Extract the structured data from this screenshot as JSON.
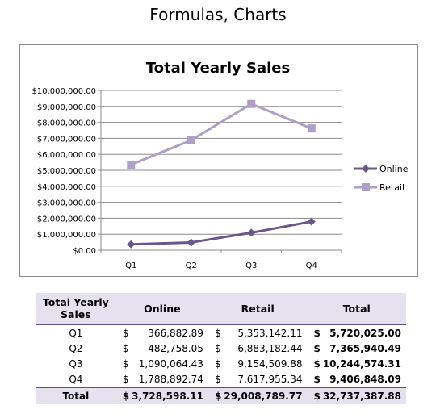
{
  "page": {
    "title": "Formulas, Charts"
  },
  "colors": {
    "online": "#6a568a",
    "retail": "#ad9fc5",
    "header_bg": "#e5e1ee",
    "rule": "#5e4d86"
  },
  "chart_data": {
    "type": "line",
    "title": "Total Yearly Sales",
    "categories": [
      "Q1",
      "Q2",
      "Q3",
      "Q4"
    ],
    "series": [
      {
        "name": "Online",
        "values": [
          366882.89,
          482758.05,
          1090064.43,
          1788892.74
        ],
        "marker": "diamond",
        "color": "#6a568a"
      },
      {
        "name": "Retail",
        "values": [
          5353142.11,
          6883182.44,
          9154509.88,
          7617955.34
        ],
        "marker": "square",
        "color": "#ad9fc5"
      }
    ],
    "ylim": [
      0,
      10000000
    ],
    "yticks": [
      "$0.00",
      "$1,000,000.00",
      "$2,000,000.00",
      "$3,000,000.00",
      "$4,000,000.00",
      "$5,000,000.00",
      "$6,000,000.00",
      "$7,000,000.00",
      "$8,000,000.00",
      "$9,000,000.00",
      "$10,000,000.00"
    ],
    "grid": true,
    "legend": "right"
  },
  "table": {
    "headers": [
      "Total Yearly Sales",
      "Online",
      "Retail",
      "Total"
    ],
    "currency": "$",
    "rows": [
      {
        "quarter": "Q1",
        "online": "366,882.89",
        "retail": "5,353,142.11",
        "total": "5,720,025.00"
      },
      {
        "quarter": "Q2",
        "online": "482,758.05",
        "retail": "6,883,182.44",
        "total": "7,365,940.49"
      },
      {
        "quarter": "Q3",
        "online": "1,090,064.43",
        "retail": "9,154,509.88",
        "total": "10,244,574.31"
      },
      {
        "quarter": "Q4",
        "online": "1,788,892.74",
        "retail": "7,617,955.34",
        "total": "9,406,848.09"
      }
    ],
    "total_row": {
      "label": "Total",
      "online": "3,728,598.11",
      "retail": "29,008,789.77",
      "total": "32,737,387.88"
    }
  }
}
